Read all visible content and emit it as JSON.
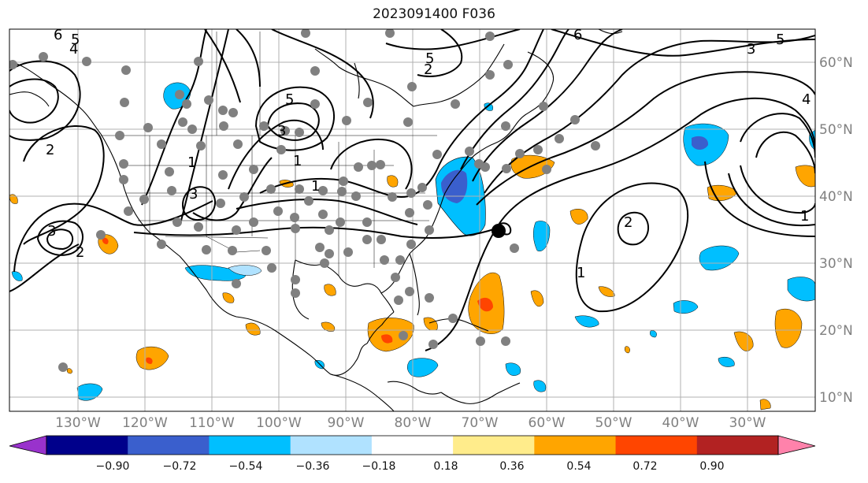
{
  "title": "2023091400 F036",
  "map": {
    "lon_labels": [
      "130°W",
      "120°W",
      "110°W",
      "100°W",
      "90°W",
      "80°W",
      "70°W",
      "60°W",
      "50°W",
      "40°W",
      "30°W"
    ],
    "lat_labels": [
      "60°N",
      "50°N",
      "40°N",
      "30°N",
      "20°N",
      "10°N"
    ],
    "contour_labels": [
      "6",
      "5",
      "4",
      "3",
      "2",
      "1",
      "1",
      "1",
      "3",
      "3",
      "2",
      "5",
      "5",
      "6",
      "5",
      "3",
      "4",
      "2",
      "1",
      "2",
      "1"
    ],
    "colors": {
      "land_outline": "#000000",
      "grid": "#b0b0b0",
      "marker": "#808080",
      "center_marker": "#000000"
    }
  },
  "colorbar": {
    "ticks": [
      "−0.90",
      "−0.72",
      "−0.54",
      "−0.36",
      "−0.18",
      "0.18",
      "0.36",
      "0.54",
      "0.72",
      "0.90"
    ],
    "colors": [
      "#9932cc",
      "#00008b",
      "#3a5fcd",
      "#00bfff",
      "#b0e2ff",
      "#ffffff",
      "#ffec8b",
      "#ffa500",
      "#ff4500",
      "#b22222",
      "#ff82ab"
    ]
  }
}
